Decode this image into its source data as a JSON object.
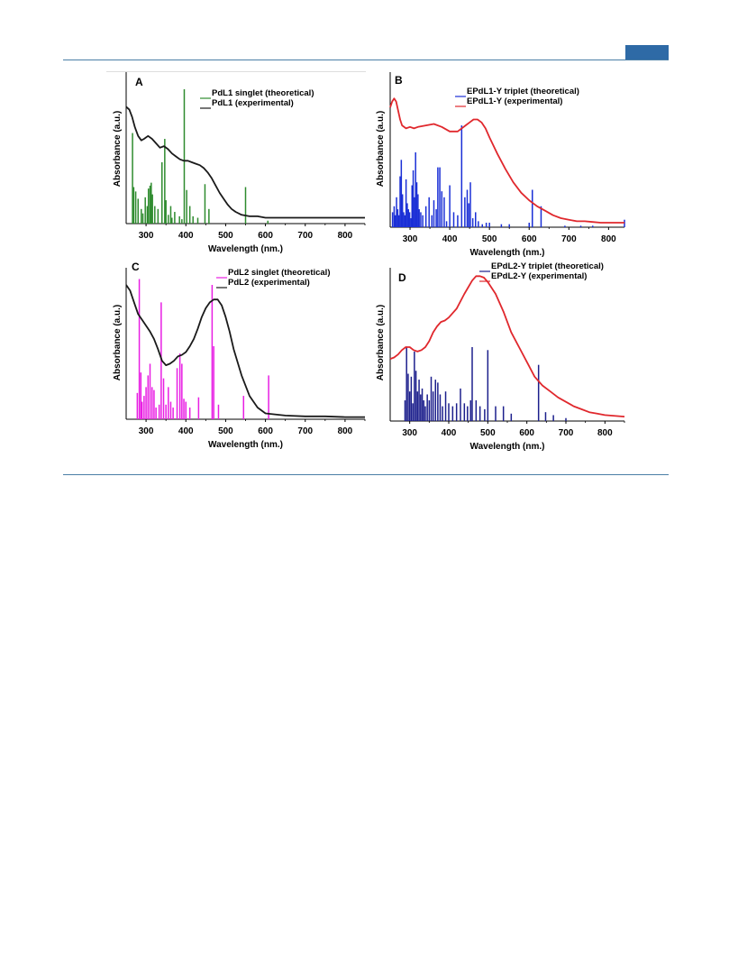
{
  "page": {
    "header_band_color": "#2e6aa6",
    "rule_color": "#4a7ea6"
  },
  "chart_data": [
    {
      "id": "A",
      "panel_label": "A",
      "type": "line",
      "xlabel": "Wavelength (nm.)",
      "ylabel": "Absorbance (a.u.)",
      "xlim": [
        250,
        850
      ],
      "ylim": [
        0,
        1
      ],
      "xticks": [
        300,
        400,
        500,
        600,
        700,
        800
      ],
      "grid": false,
      "legend_position": "top-center",
      "series": [
        {
          "name": "PdL1 singlet (theoretical)",
          "kind": "stick",
          "color": "#2e8b2e",
          "x": [
            266,
            269,
            274,
            280,
            288,
            292,
            298,
            303,
            306,
            310,
            313,
            316,
            322,
            330,
            340,
            347,
            350,
            356,
            362,
            365,
            372,
            384,
            390,
            396,
            402,
            410,
            418,
            430,
            448,
            458,
            550,
            606
          ],
          "y": [
            0.62,
            0.25,
            0.22,
            0.17,
            0.1,
            0.07,
            0.18,
            0.12,
            0.24,
            0.26,
            0.28,
            0.2,
            0.12,
            0.1,
            0.42,
            0.58,
            0.16,
            0.06,
            0.12,
            0.04,
            0.08,
            0.05,
            0.03,
            0.92,
            0.23,
            0.12,
            0.05,
            0.04,
            0.27,
            0.1,
            0.25,
            0.02
          ]
        },
        {
          "name": "PdL1 (experimental)",
          "kind": "line",
          "color": "#1a1a1a",
          "x": [
            250,
            258,
            265,
            272,
            280,
            288,
            295,
            305,
            315,
            325,
            335,
            345,
            355,
            365,
            375,
            385,
            395,
            405,
            415,
            425,
            435,
            445,
            455,
            465,
            475,
            485,
            495,
            505,
            515,
            525,
            540,
            560,
            580,
            600,
            650,
            700,
            750,
            800,
            850
          ],
          "y": [
            0.8,
            0.78,
            0.73,
            0.66,
            0.6,
            0.57,
            0.58,
            0.6,
            0.58,
            0.55,
            0.52,
            0.53,
            0.51,
            0.48,
            0.46,
            0.44,
            0.43,
            0.43,
            0.42,
            0.41,
            0.4,
            0.38,
            0.35,
            0.31,
            0.26,
            0.21,
            0.17,
            0.13,
            0.1,
            0.08,
            0.06,
            0.05,
            0.05,
            0.04,
            0.04,
            0.04,
            0.04,
            0.04,
            0.04
          ]
        }
      ]
    },
    {
      "id": "B",
      "panel_label": "B",
      "type": "line",
      "xlabel": "Wavelength (nm.)",
      "ylabel": "Absorbance (a.u.)",
      "xlim": [
        250,
        840
      ],
      "ylim": [
        0,
        1
      ],
      "xticks": [
        300,
        400,
        500,
        600,
        700,
        800
      ],
      "grid": false,
      "legend_position": "top-center",
      "series": [
        {
          "name": "EPdL1-Y triplet (theoretical)",
          "kind": "stick",
          "color": "#1a2fd6",
          "x": [
            256,
            260,
            263,
            266,
            269,
            272,
            275,
            278,
            281,
            284,
            287,
            290,
            293,
            296,
            299,
            302,
            305,
            308,
            311,
            314,
            317,
            320,
            323,
            327,
            332,
            340,
            348,
            355,
            360,
            366,
            370,
            375,
            380,
            386,
            392,
            400,
            410,
            420,
            430,
            438,
            444,
            448,
            452,
            458,
            465,
            472,
            482,
            492,
            500,
            530,
            550,
            600,
            608,
            630,
            690,
            730,
            760,
            840
          ],
          "y": [
            0.1,
            0.14,
            0.08,
            0.2,
            0.12,
            0.08,
            0.34,
            0.45,
            0.22,
            0.1,
            0.08,
            0.32,
            0.16,
            0.12,
            0.1,
            0.06,
            0.28,
            0.38,
            0.2,
            0.5,
            0.3,
            0.22,
            0.12,
            0.1,
            0.08,
            0.14,
            0.2,
            0.08,
            0.18,
            0.12,
            0.4,
            0.4,
            0.24,
            0.2,
            0.04,
            0.28,
            0.1,
            0.08,
            0.68,
            0.2,
            0.25,
            0.16,
            0.3,
            0.06,
            0.1,
            0.04,
            0.02,
            0.03,
            0.03,
            0.02,
            0.02,
            0.03,
            0.25,
            0.14,
            0.01,
            0.01,
            0.01,
            0.05
          ]
        },
        {
          "name": "EPdL1-Y (experimental)",
          "kind": "line",
          "color": "#e0282d",
          "x": [
            250,
            255,
            260,
            265,
            270,
            275,
            280,
            290,
            300,
            310,
            320,
            340,
            360,
            380,
            400,
            420,
            440,
            450,
            460,
            470,
            480,
            490,
            500,
            520,
            540,
            560,
            580,
            600,
            620,
            640,
            660,
            680,
            700,
            720,
            740,
            760,
            780,
            800,
            840
          ],
          "y": [
            0.8,
            0.84,
            0.86,
            0.84,
            0.78,
            0.72,
            0.68,
            0.66,
            0.67,
            0.66,
            0.67,
            0.68,
            0.69,
            0.67,
            0.64,
            0.64,
            0.68,
            0.7,
            0.72,
            0.72,
            0.7,
            0.66,
            0.6,
            0.49,
            0.39,
            0.3,
            0.23,
            0.18,
            0.14,
            0.11,
            0.08,
            0.06,
            0.05,
            0.04,
            0.04,
            0.035,
            0.03,
            0.03,
            0.03
          ]
        }
      ]
    },
    {
      "id": "C",
      "panel_label": "C",
      "type": "line",
      "xlabel": "Wavelength (nm.)",
      "ylabel": "Absorbance (a.u.)",
      "xlim": [
        250,
        850
      ],
      "ylim": [
        0,
        1
      ],
      "xticks": [
        300,
        400,
        500,
        600,
        700,
        800
      ],
      "grid": false,
      "legend_position": "top-center",
      "series": [
        {
          "name": "PdL2 singlet (theoretical)",
          "kind": "stick",
          "color": "#e81ee3",
          "x": [
            278,
            283,
            287,
            290,
            295,
            300,
            305,
            310,
            315,
            320,
            325,
            333,
            338,
            344,
            350,
            356,
            362,
            368,
            378,
            385,
            390,
            395,
            400,
            410,
            432,
            466,
            470,
            482,
            545,
            608
          ],
          "y": [
            0.18,
            0.96,
            0.32,
            0.12,
            0.16,
            0.22,
            0.3,
            0.38,
            0.22,
            0.2,
            0.08,
            0.1,
            0.8,
            0.28,
            0.1,
            0.22,
            0.12,
            0.08,
            0.35,
            0.45,
            0.38,
            0.14,
            0.12,
            0.08,
            0.15,
            0.92,
            0.5,
            0.1,
            0.16,
            0.3
          ]
        },
        {
          "name": "PdL2 (experimental)",
          "kind": "line",
          "color": "#1a1a1a",
          "x": [
            250,
            260,
            270,
            280,
            290,
            300,
            310,
            320,
            330,
            340,
            350,
            360,
            370,
            380,
            390,
            400,
            410,
            420,
            430,
            440,
            450,
            460,
            470,
            480,
            490,
            500,
            510,
            520,
            540,
            560,
            580,
            600,
            650,
            700,
            750,
            800,
            850
          ],
          "y": [
            0.92,
            0.88,
            0.8,
            0.72,
            0.68,
            0.64,
            0.6,
            0.55,
            0.48,
            0.4,
            0.37,
            0.38,
            0.4,
            0.43,
            0.44,
            0.46,
            0.5,
            0.55,
            0.62,
            0.7,
            0.76,
            0.8,
            0.82,
            0.82,
            0.78,
            0.7,
            0.6,
            0.48,
            0.3,
            0.16,
            0.08,
            0.04,
            0.025,
            0.02,
            0.02,
            0.015,
            0.015
          ]
        }
      ]
    },
    {
      "id": "D",
      "panel_label": "D",
      "type": "line",
      "xlabel": "Wavelength (nm.)",
      "ylabel": "Absorbance (a.u.)",
      "xlim": [
        250,
        850
      ],
      "ylim": [
        0,
        1
      ],
      "xticks": [
        300,
        400,
        500,
        600,
        700,
        800
      ],
      "grid": false,
      "legend_position": "top-center",
      "series": [
        {
          "name": "EPdL2-Y triplet (theoretical)",
          "kind": "stick",
          "color": "#1c1f8c",
          "x": [
            288,
            292,
            296,
            300,
            304,
            308,
            312,
            316,
            320,
            324,
            328,
            332,
            336,
            340,
            345,
            350,
            355,
            360,
            366,
            372,
            378,
            384,
            392,
            400,
            410,
            420,
            430,
            440,
            448,
            456,
            460,
            470,
            480,
            492,
            500,
            520,
            540,
            560,
            630,
            648,
            668,
            700
          ],
          "y": [
            0.14,
            0.5,
            0.32,
            0.2,
            0.3,
            0.12,
            0.47,
            0.34,
            0.2,
            0.28,
            0.18,
            0.22,
            0.14,
            0.1,
            0.18,
            0.14,
            0.3,
            0.2,
            0.28,
            0.26,
            0.18,
            0.1,
            0.2,
            0.12,
            0.1,
            0.12,
            0.22,
            0.12,
            0.1,
            0.14,
            0.5,
            0.14,
            0.1,
            0.08,
            0.48,
            0.1,
            0.1,
            0.05,
            0.38,
            0.06,
            0.04,
            0.02
          ]
        },
        {
          "name": "EPdL2-Y (experimental)",
          "kind": "line",
          "color": "#e0282d",
          "x": [
            250,
            260,
            270,
            280,
            290,
            300,
            310,
            320,
            330,
            340,
            350,
            360,
            370,
            380,
            390,
            400,
            420,
            440,
            460,
            470,
            480,
            490,
            500,
            520,
            540,
            560,
            580,
            600,
            620,
            640,
            660,
            680,
            700,
            720,
            740,
            760,
            780,
            800,
            850
          ],
          "y": [
            0.42,
            0.43,
            0.45,
            0.48,
            0.5,
            0.5,
            0.48,
            0.47,
            0.48,
            0.5,
            0.54,
            0.6,
            0.64,
            0.67,
            0.68,
            0.7,
            0.76,
            0.86,
            0.95,
            0.98,
            0.98,
            0.97,
            0.94,
            0.86,
            0.74,
            0.6,
            0.5,
            0.4,
            0.3,
            0.24,
            0.2,
            0.16,
            0.13,
            0.1,
            0.08,
            0.06,
            0.05,
            0.04,
            0.03
          ]
        }
      ]
    }
  ]
}
